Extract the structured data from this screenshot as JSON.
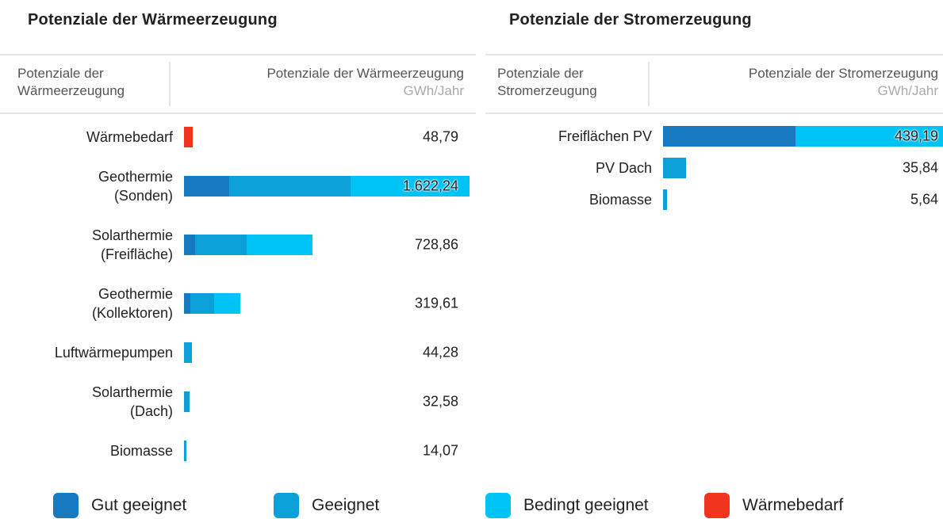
{
  "chart_data": [
    {
      "type": "bar",
      "stacked": true,
      "title": "Potenziale der Wärmeerzeugung",
      "column_headers": [
        "Potenziale der\nWärmeerzeugung",
        "Potenziale der Wärmeerzeugung"
      ],
      "unit": "GWh/Jahr",
      "categories": [
        "Wärmebedarf",
        "Geothermie\n(Sonden)",
        "Solarthermie\n(Freifläche)",
        "Geothermie\n(Kollektoren)",
        "Luftwärmepumpen",
        "Solarthermie\n(Dach)",
        "Biomasse"
      ],
      "series": [
        {
          "name": "Gut geeignet",
          "color": "#1779c0",
          "values": [
            null,
            257,
            63,
            36,
            null,
            null,
            null
          ]
        },
        {
          "name": "Geeignet",
          "color": "#0ca0d8",
          "values": [
            null,
            690,
            293,
            135,
            44.28,
            32.58,
            14.07
          ]
        },
        {
          "name": "Bedingt geeignet",
          "color": "#00c3f5",
          "values": [
            null,
            675.24,
            372.86,
            148.61,
            null,
            null,
            null
          ]
        },
        {
          "name": "Wärmebedarf",
          "color": "#f0341e",
          "values": [
            48.79,
            null,
            null,
            null,
            null,
            null,
            null
          ]
        }
      ],
      "totals": [
        48.79,
        1622.24,
        728.86,
        319.61,
        44.28,
        32.58,
        14.07
      ],
      "total_labels": [
        "48,79",
        "1.622,24",
        "728,86",
        "319,61",
        "44,28",
        "32,58",
        "14,07"
      ]
    },
    {
      "type": "bar",
      "stacked": true,
      "title": "Potenziale der Stromerzeugung",
      "column_headers": [
        "Potenziale der\nStromerzeugung",
        "Potenziale der Stromerzeugung"
      ],
      "unit": "GWh/Jahr",
      "categories": [
        "Freiflächen PV",
        "PV Dach",
        "Biomasse"
      ],
      "series": [
        {
          "values": [
            208,
            null,
            null
          ]
        },
        {
          "values": [
            null,
            35.84,
            5.64
          ]
        },
        {
          "values": [
            231.19,
            null,
            null
          ]
        }
      ],
      "totals": [
        439.19,
        35.84,
        5.64
      ],
      "total_labels": [
        "439,19",
        "35,84",
        "5,64"
      ]
    }
  ]
}
